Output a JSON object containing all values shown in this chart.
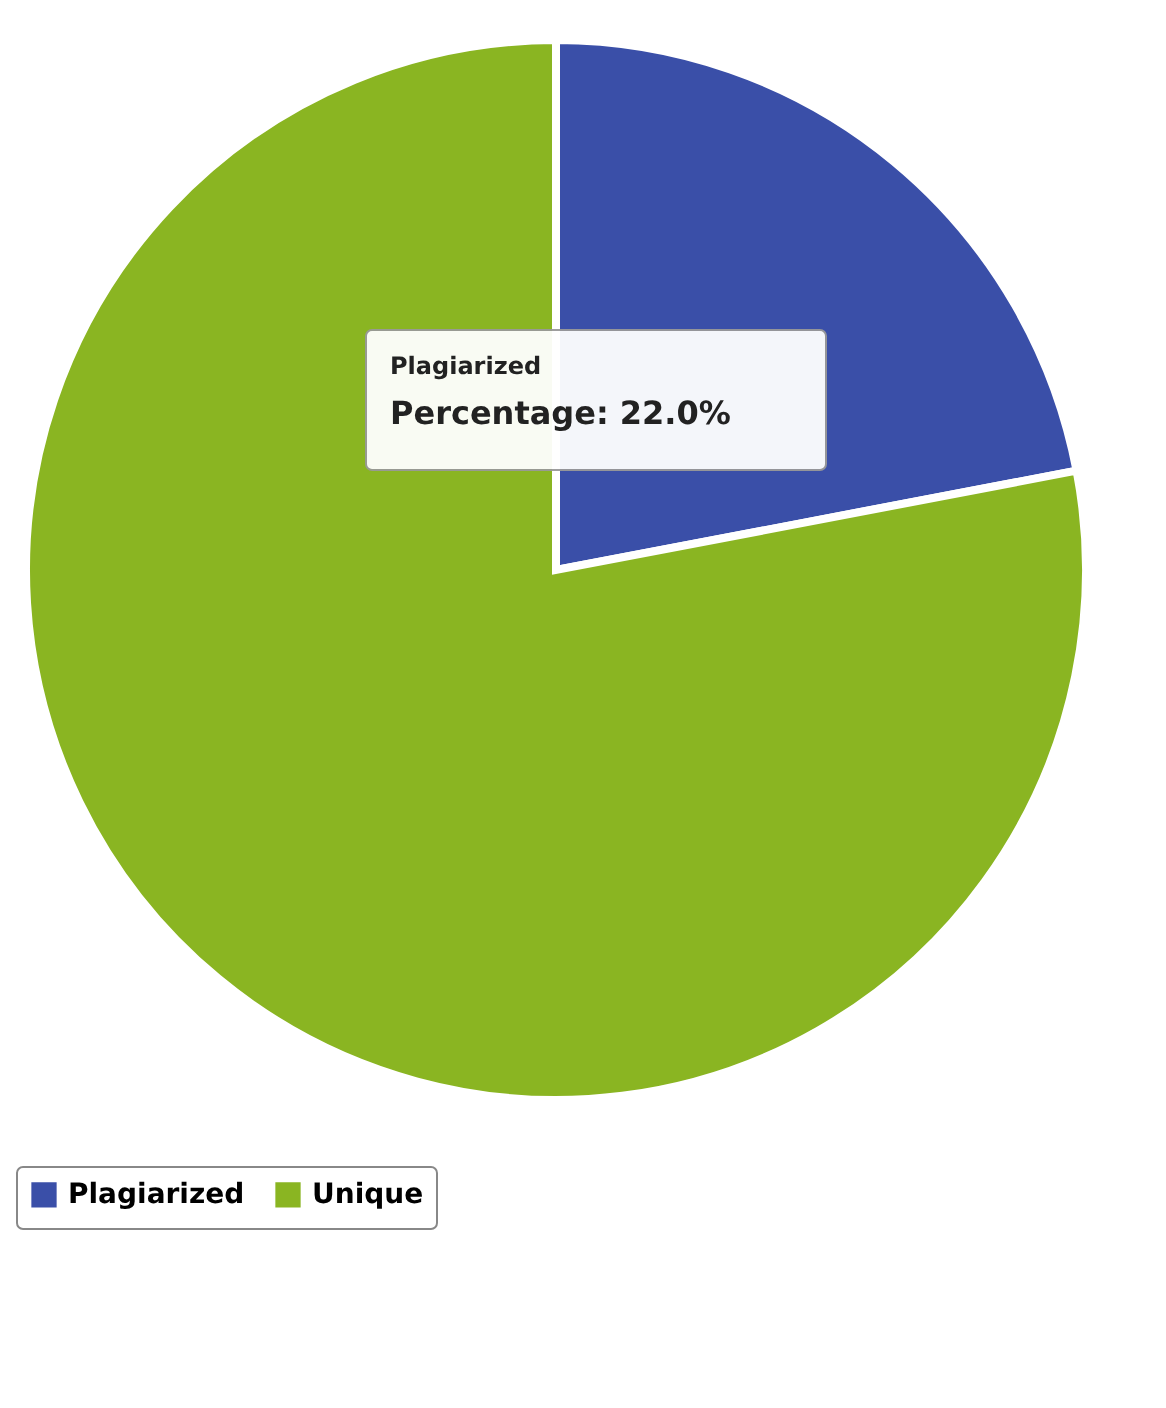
{
  "chart_data": {
    "type": "pie",
    "categories": [
      "Plagiarized",
      "Unique"
    ],
    "values": [
      22,
      78
    ],
    "colors": [
      "#3a4fa8",
      "#8ab522"
    ],
    "legend": "bottom",
    "annotations": [
      "Plagiarized",
      "Percentage: 22.0%"
    ]
  }
}
